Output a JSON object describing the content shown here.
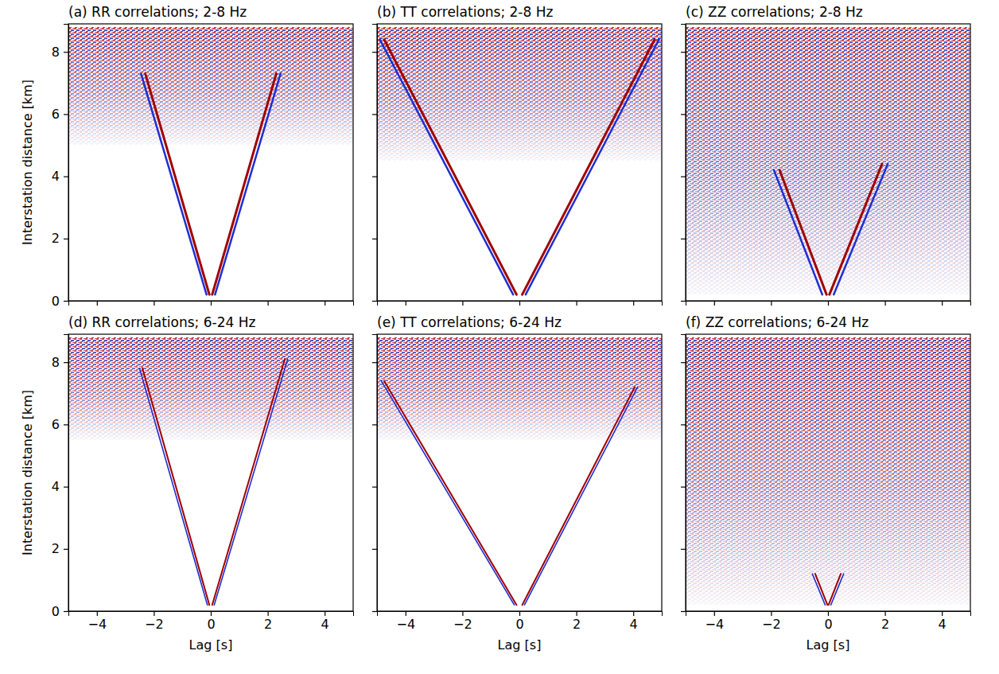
{
  "chart_data": [
    {
      "type": "line",
      "title": "(a) RR correlations; 2-8 Hz",
      "ylabel": "Interstation distance [km]",
      "xlim": [
        -5,
        5
      ],
      "xticks": [
        {
          "value": -4,
          "label": "−4"
        },
        {
          "value": -2,
          "label": "−2"
        },
        0,
        2,
        4
      ],
      "ylim": [
        0,
        8.9
      ],
      "yticks": [
        0,
        2,
        4,
        6,
        8
      ],
      "tick_labels": "y",
      "noise_ylim": [
        5.0,
        8.8
      ],
      "series": [
        {
          "color": "#1f2fd0",
          "x": [
            -0.15,
            -2.45
          ],
          "values": [
            0.2,
            7.3
          ]
        },
        {
          "color": "#a00000",
          "x": [
            -0.05,
            -2.3
          ],
          "values": [
            0.2,
            7.3
          ]
        },
        {
          "color": "#1f2fd0",
          "x": [
            0.15,
            2.45
          ],
          "values": [
            0.2,
            7.3
          ]
        },
        {
          "color": "#a00000",
          "x": [
            0.05,
            2.3
          ],
          "values": [
            0.2,
            7.3
          ]
        }
      ]
    },
    {
      "type": "line",
      "title": "(b) TT correlations; 2-8 Hz",
      "xlim": [
        -5,
        5
      ],
      "xticks": [
        {
          "value": -4,
          "label": "−4"
        },
        {
          "value": -2,
          "label": "−2"
        },
        0,
        2,
        4
      ],
      "ylim": [
        0,
        8.9
      ],
      "yticks": [
        0,
        2,
        4,
        6,
        8
      ],
      "tick_labels": false,
      "noise_ylim": [
        4.5,
        8.8
      ],
      "series": [
        {
          "color": "#1f2fd0",
          "x": [
            -0.22,
            -4.9
          ],
          "values": [
            0.2,
            8.4
          ]
        },
        {
          "color": "#a00000",
          "x": [
            -0.1,
            -4.75
          ],
          "values": [
            0.2,
            8.4
          ]
        },
        {
          "color": "#1f2fd0",
          "x": [
            0.22,
            4.9
          ],
          "values": [
            0.2,
            8.4
          ]
        },
        {
          "color": "#a00000",
          "x": [
            0.1,
            4.75
          ],
          "values": [
            0.2,
            8.4
          ]
        }
      ]
    },
    {
      "type": "line",
      "title": "(c) ZZ correlations; 2-8 Hz",
      "xlim": [
        -5,
        5
      ],
      "xticks": [
        {
          "value": -4,
          "label": "−4"
        },
        {
          "value": -2,
          "label": "−2"
        },
        0,
        2,
        4
      ],
      "ylim": [
        0,
        8.9
      ],
      "yticks": [
        0,
        2,
        4,
        6,
        8
      ],
      "tick_labels": false,
      "noise_ylim": [
        0.2,
        8.8
      ],
      "series": [
        {
          "color": "#1f2fd0",
          "x": [
            -0.2,
            -1.9
          ],
          "values": [
            0.2,
            4.2
          ]
        },
        {
          "color": "#a00000",
          "x": [
            -0.05,
            -1.7
          ],
          "values": [
            0.2,
            4.2
          ]
        },
        {
          "color": "#1f2fd0",
          "x": [
            0.2,
            2.1
          ],
          "values": [
            0.2,
            4.4
          ]
        },
        {
          "color": "#a00000",
          "x": [
            0.05,
            1.9
          ],
          "values": [
            0.2,
            4.4
          ]
        }
      ]
    },
    {
      "type": "line",
      "title": "(d) RR correlations; 6-24 Hz",
      "xlabel": "Lag [s]",
      "ylabel": "Interstation distance [km]",
      "xlim": [
        -5,
        5
      ],
      "xticks": [
        {
          "value": -4,
          "label": "−4"
        },
        {
          "value": -2,
          "label": "−2"
        },
        0,
        2,
        4
      ],
      "ylim": [
        0,
        8.9
      ],
      "yticks": [
        0,
        2,
        4,
        6,
        8
      ],
      "noise_ylim": [
        5.5,
        8.8
      ],
      "series": [
        {
          "color": "#1f2fd0",
          "x": [
            -0.12,
            -2.5
          ],
          "values": [
            0.2,
            7.8
          ]
        },
        {
          "color": "#a00000",
          "x": [
            -0.05,
            -2.4
          ],
          "values": [
            0.2,
            7.8
          ]
        },
        {
          "color": "#1f2fd0",
          "x": [
            0.12,
            2.7
          ],
          "values": [
            0.2,
            8.1
          ]
        },
        {
          "color": "#a00000",
          "x": [
            0.05,
            2.6
          ],
          "values": [
            0.2,
            8.1
          ]
        }
      ]
    },
    {
      "type": "line",
      "title": "(e) TT correlations; 6-24 Hz",
      "xlabel": "Lag [s]",
      "xlim": [
        -5,
        5
      ],
      "xticks": [
        {
          "value": -4,
          "label": "−4"
        },
        {
          "value": -2,
          "label": "−2"
        },
        0,
        2,
        4
      ],
      "ylim": [
        0,
        8.9
      ],
      "yticks": [
        0,
        2,
        4,
        6,
        8
      ],
      "tick_labels": "x",
      "noise_ylim": [
        5.5,
        8.8
      ],
      "series": [
        {
          "color": "#1f2fd0",
          "x": [
            -0.18,
            -4.85
          ],
          "values": [
            0.2,
            7.4
          ]
        },
        {
          "color": "#a00000",
          "x": [
            -0.1,
            -4.75
          ],
          "values": [
            0.2,
            7.4
          ]
        },
        {
          "color": "#1f2fd0",
          "x": [
            0.18,
            4.15
          ],
          "values": [
            0.2,
            7.2
          ]
        },
        {
          "color": "#a00000",
          "x": [
            0.1,
            4.05
          ],
          "values": [
            0.2,
            7.2
          ]
        }
      ]
    },
    {
      "type": "line",
      "title": "(f) ZZ correlations; 6-24 Hz",
      "xlabel": "Lag [s]",
      "xlim": [
        -5,
        5
      ],
      "xticks": [
        {
          "value": -4,
          "label": "−4"
        },
        {
          "value": -2,
          "label": "−2"
        },
        0,
        2,
        4
      ],
      "ylim": [
        0,
        8.9
      ],
      "yticks": [
        0,
        2,
        4,
        6,
        8
      ],
      "tick_labels": "x",
      "noise_ylim": [
        0.2,
        8.8
      ],
      "series": [
        {
          "color": "#1f2fd0",
          "x": [
            -0.1,
            -0.55
          ],
          "values": [
            0.2,
            1.2
          ]
        },
        {
          "color": "#a00000",
          "x": [
            -0.02,
            -0.45
          ],
          "values": [
            0.2,
            1.2
          ]
        },
        {
          "color": "#1f2fd0",
          "x": [
            0.1,
            0.55
          ],
          "values": [
            0.2,
            1.2
          ]
        },
        {
          "color": "#a00000",
          "x": [
            0.02,
            0.45
          ],
          "values": [
            0.2,
            1.2
          ]
        }
      ]
    }
  ]
}
